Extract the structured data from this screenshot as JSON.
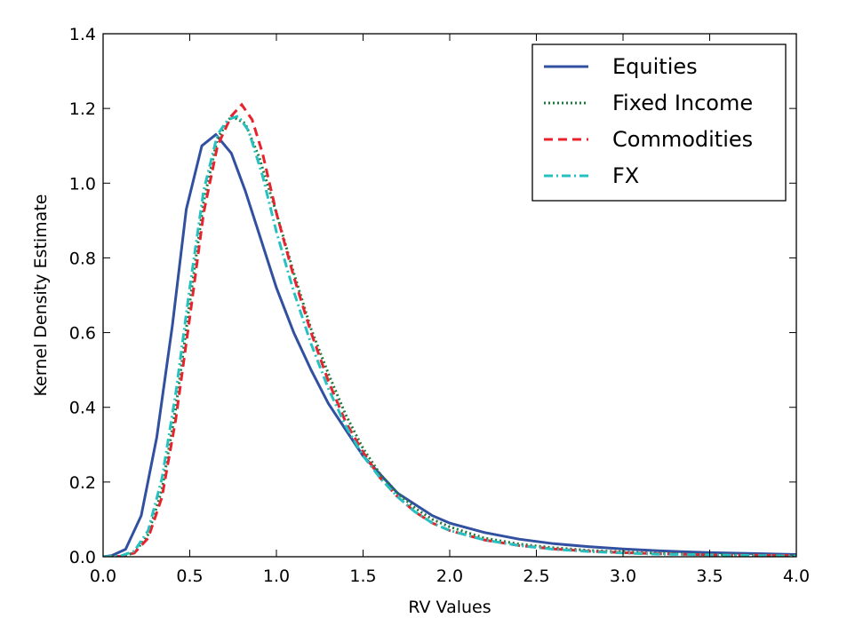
{
  "chart_data": {
    "type": "line",
    "title": "",
    "xlabel": "RV Values",
    "ylabel": "Kernel Density Estimate",
    "xlim": [
      0.0,
      4.0
    ],
    "ylim": [
      0.0,
      1.4
    ],
    "xticks": [
      "0.0",
      "0.5",
      "1.0",
      "1.5",
      "2.0",
      "2.5",
      "3.0",
      "3.5",
      "4.0"
    ],
    "yticks": [
      "0.0",
      "0.2",
      "0.4",
      "0.6",
      "0.8",
      "1.0",
      "1.2",
      "1.4"
    ],
    "grid": false,
    "legend_position": "top-right",
    "series": [
      {
        "name": "Equities",
        "color": "#3250a0",
        "style": "solid",
        "x": [
          0.0,
          0.05,
          0.13,
          0.22,
          0.31,
          0.4,
          0.48,
          0.57,
          0.65,
          0.74,
          0.82,
          0.91,
          1.0,
          1.1,
          1.2,
          1.3,
          1.4,
          1.5,
          1.6,
          1.7,
          1.8,
          1.9,
          2.0,
          2.2,
          2.4,
          2.6,
          2.8,
          3.0,
          3.2,
          3.5,
          3.8,
          4.0
        ],
        "y": [
          0.0,
          0.003,
          0.02,
          0.11,
          0.32,
          0.62,
          0.93,
          1.1,
          1.13,
          1.08,
          0.98,
          0.85,
          0.72,
          0.6,
          0.5,
          0.41,
          0.34,
          0.27,
          0.22,
          0.17,
          0.14,
          0.11,
          0.09,
          0.065,
          0.047,
          0.035,
          0.027,
          0.021,
          0.016,
          0.011,
          0.008,
          0.006
        ]
      },
      {
        "name": "Fixed Income",
        "color": "#1e7a3c",
        "style": "dotted",
        "x": [
          0.0,
          0.1,
          0.18,
          0.26,
          0.34,
          0.42,
          0.5,
          0.58,
          0.66,
          0.74,
          0.82,
          0.9,
          1.0,
          1.1,
          1.2,
          1.3,
          1.4,
          1.5,
          1.6,
          1.7,
          1.8,
          1.9,
          2.0,
          2.2,
          2.4,
          2.6,
          2.8,
          3.0,
          3.2,
          3.5,
          3.8,
          4.0
        ],
        "y": [
          0.0,
          0.001,
          0.01,
          0.06,
          0.18,
          0.4,
          0.68,
          0.95,
          1.12,
          1.18,
          1.16,
          1.07,
          0.92,
          0.76,
          0.61,
          0.49,
          0.38,
          0.29,
          0.22,
          0.17,
          0.13,
          0.1,
          0.08,
          0.05,
          0.034,
          0.024,
          0.017,
          0.013,
          0.009,
          0.006,
          0.004,
          0.003
        ]
      },
      {
        "name": "Commodities",
        "color": "#e8232d",
        "style": "dashed",
        "x": [
          0.0,
          0.1,
          0.18,
          0.26,
          0.34,
          0.42,
          0.5,
          0.58,
          0.66,
          0.74,
          0.8,
          0.86,
          0.92,
          1.0,
          1.1,
          1.2,
          1.3,
          1.4,
          1.5,
          1.6,
          1.7,
          1.8,
          1.9,
          2.0,
          2.2,
          2.4,
          2.6,
          2.8,
          3.0,
          3.2,
          3.5,
          3.8,
          4.0
        ],
        "y": [
          0.0,
          0.001,
          0.01,
          0.05,
          0.16,
          0.37,
          0.64,
          0.92,
          1.1,
          1.18,
          1.21,
          1.17,
          1.08,
          0.92,
          0.75,
          0.6,
          0.47,
          0.36,
          0.28,
          0.21,
          0.16,
          0.12,
          0.09,
          0.07,
          0.045,
          0.03,
          0.021,
          0.015,
          0.011,
          0.008,
          0.005,
          0.004,
          0.003
        ]
      },
      {
        "name": "FX",
        "color": "#26c0c0",
        "style": "dashdot",
        "x": [
          0.0,
          0.1,
          0.18,
          0.26,
          0.34,
          0.42,
          0.5,
          0.58,
          0.66,
          0.72,
          0.78,
          0.84,
          0.92,
          1.0,
          1.1,
          1.2,
          1.3,
          1.4,
          1.5,
          1.6,
          1.7,
          1.8,
          1.9,
          2.0,
          2.2,
          2.4,
          2.6,
          2.8,
          3.0,
          3.2,
          3.5,
          3.8,
          4.0
        ],
        "y": [
          0.0,
          0.002,
          0.015,
          0.07,
          0.21,
          0.44,
          0.72,
          0.98,
          1.13,
          1.17,
          1.18,
          1.14,
          1.02,
          0.87,
          0.71,
          0.57,
          0.45,
          0.35,
          0.27,
          0.21,
          0.16,
          0.12,
          0.09,
          0.07,
          0.045,
          0.03,
          0.02,
          0.014,
          0.01,
          0.007,
          0.005,
          0.003,
          0.002
        ]
      }
    ]
  }
}
